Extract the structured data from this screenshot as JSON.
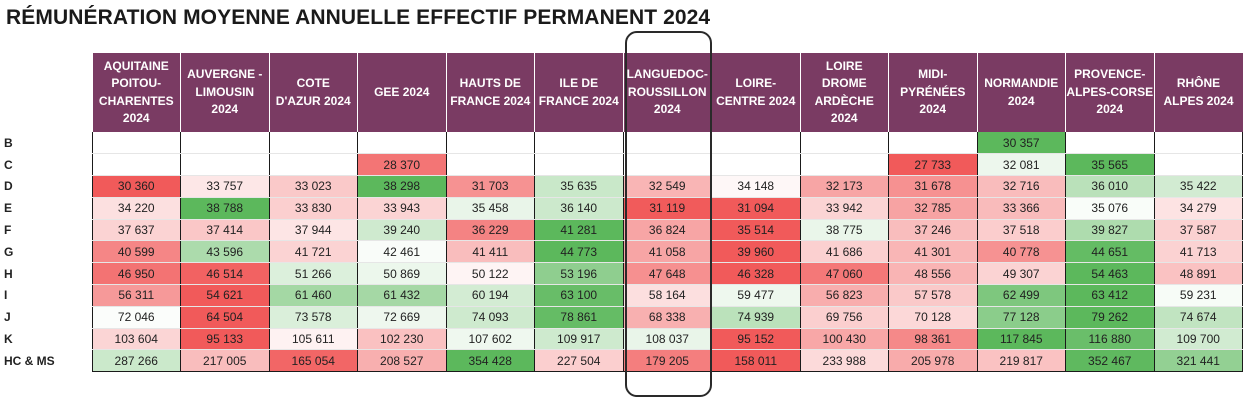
{
  "title": "RÉMUNÉRATION MOYENNE ANNUELLE EFFECTIF PERMANENT 2024",
  "highlighted_column": "LANGUEDOC-ROUSSILLON 2024",
  "palette": {
    "low": "#f15a5a",
    "mid": "#ffffff",
    "high": "#5cb85c",
    "header_bg": "#7a3b63"
  },
  "chart_data": {
    "type": "heatmap",
    "title": "RÉMUNÉRATION MOYENNE ANNUELLE EFFECTIF PERMANENT 2024",
    "columns": [
      [
        "AQUITAINE",
        "POITOU-",
        "CHARENTES",
        "2024"
      ],
      [
        "AUVERGNE -",
        "LIMOUSIN",
        "2024"
      ],
      [
        "COTE",
        "D'AZUR 2024"
      ],
      [
        "GEE 2024"
      ],
      [
        "HAUTS DE",
        "FRANCE 2024"
      ],
      [
        "ILE DE",
        "FRANCE 2024"
      ],
      [
        "LANGUEDOC-",
        "ROUSSILLON",
        "2024"
      ],
      [
        "LOIRE-",
        "CENTRE 2024"
      ],
      [
        "LOIRE",
        "DROME",
        "ARDÈCHE",
        "2024"
      ],
      [
        "MIDI-",
        "PYRÉNÉES",
        "2024"
      ],
      [
        "NORMANDIE",
        "2024"
      ],
      [
        "PROVENCE-",
        "ALPES-CORSE",
        "2024"
      ],
      [
        "RHÔNE",
        "ALPES 2024"
      ]
    ],
    "rows": [
      "B",
      "C",
      "D",
      "E",
      "F",
      "G",
      "H",
      "I",
      "J",
      "K",
      "HC & MS"
    ],
    "values": [
      [
        null,
        null,
        null,
        null,
        null,
        null,
        null,
        null,
        null,
        null,
        "30 357",
        null,
        null
      ],
      [
        null,
        null,
        null,
        "28 370",
        null,
        null,
        null,
        null,
        null,
        "27 733",
        "32 081",
        "35 565",
        null
      ],
      [
        "30 360",
        "33 757",
        "33 023",
        "38 298",
        "31 703",
        "35 635",
        "32 549",
        "34 148",
        "32 173",
        "31 678",
        "32 716",
        "36 010",
        "35 422"
      ],
      [
        "34 220",
        "38 788",
        "33 830",
        "33 943",
        "35 458",
        "36 140",
        "31 119",
        "31 094",
        "33 942",
        "32 785",
        "33 366",
        "35 076",
        "34 279"
      ],
      [
        "37 637",
        "37 414",
        "37 944",
        "39 240",
        "36 229",
        "41 281",
        "36 824",
        "35 514",
        "38 775",
        "37 246",
        "37 518",
        "39 827",
        "37 587"
      ],
      [
        "40 599",
        "43 596",
        "41 721",
        "42 461",
        "41 411",
        "44 773",
        "41 058",
        "39 960",
        "41 686",
        "41 301",
        "40 778",
        "44 651",
        "41 713"
      ],
      [
        "46 950",
        "46 514",
        "51 266",
        "50 869",
        "50 122",
        "53 196",
        "47 648",
        "46 328",
        "47 060",
        "48 556",
        "49 307",
        "54 463",
        "48 891"
      ],
      [
        "56 311",
        "54 621",
        "61 460",
        "61 432",
        "60 194",
        "63 100",
        "58 164",
        "59 477",
        "56 823",
        "57 578",
        "62 499",
        "63 412",
        "59 231"
      ],
      [
        "72 046",
        "64 504",
        "73 578",
        "72 669",
        "74 093",
        "78 861",
        "68 338",
        "74 939",
        "69 756",
        "70 128",
        "77 128",
        "79 262",
        "74 674"
      ],
      [
        "103 604",
        "95 133",
        "105 611",
        "102 230",
        "107 602",
        "109 917",
        "108 037",
        "95 152",
        "100 430",
        "98 361",
        "117 845",
        "116 880",
        "109 700"
      ],
      [
        "287 266",
        "217 005",
        "165 054",
        "208 527",
        "354 428",
        "227 504",
        "179 205",
        "158 011",
        "233 988",
        "205 978",
        "219 817",
        "352 467",
        "321 441"
      ]
    ]
  }
}
